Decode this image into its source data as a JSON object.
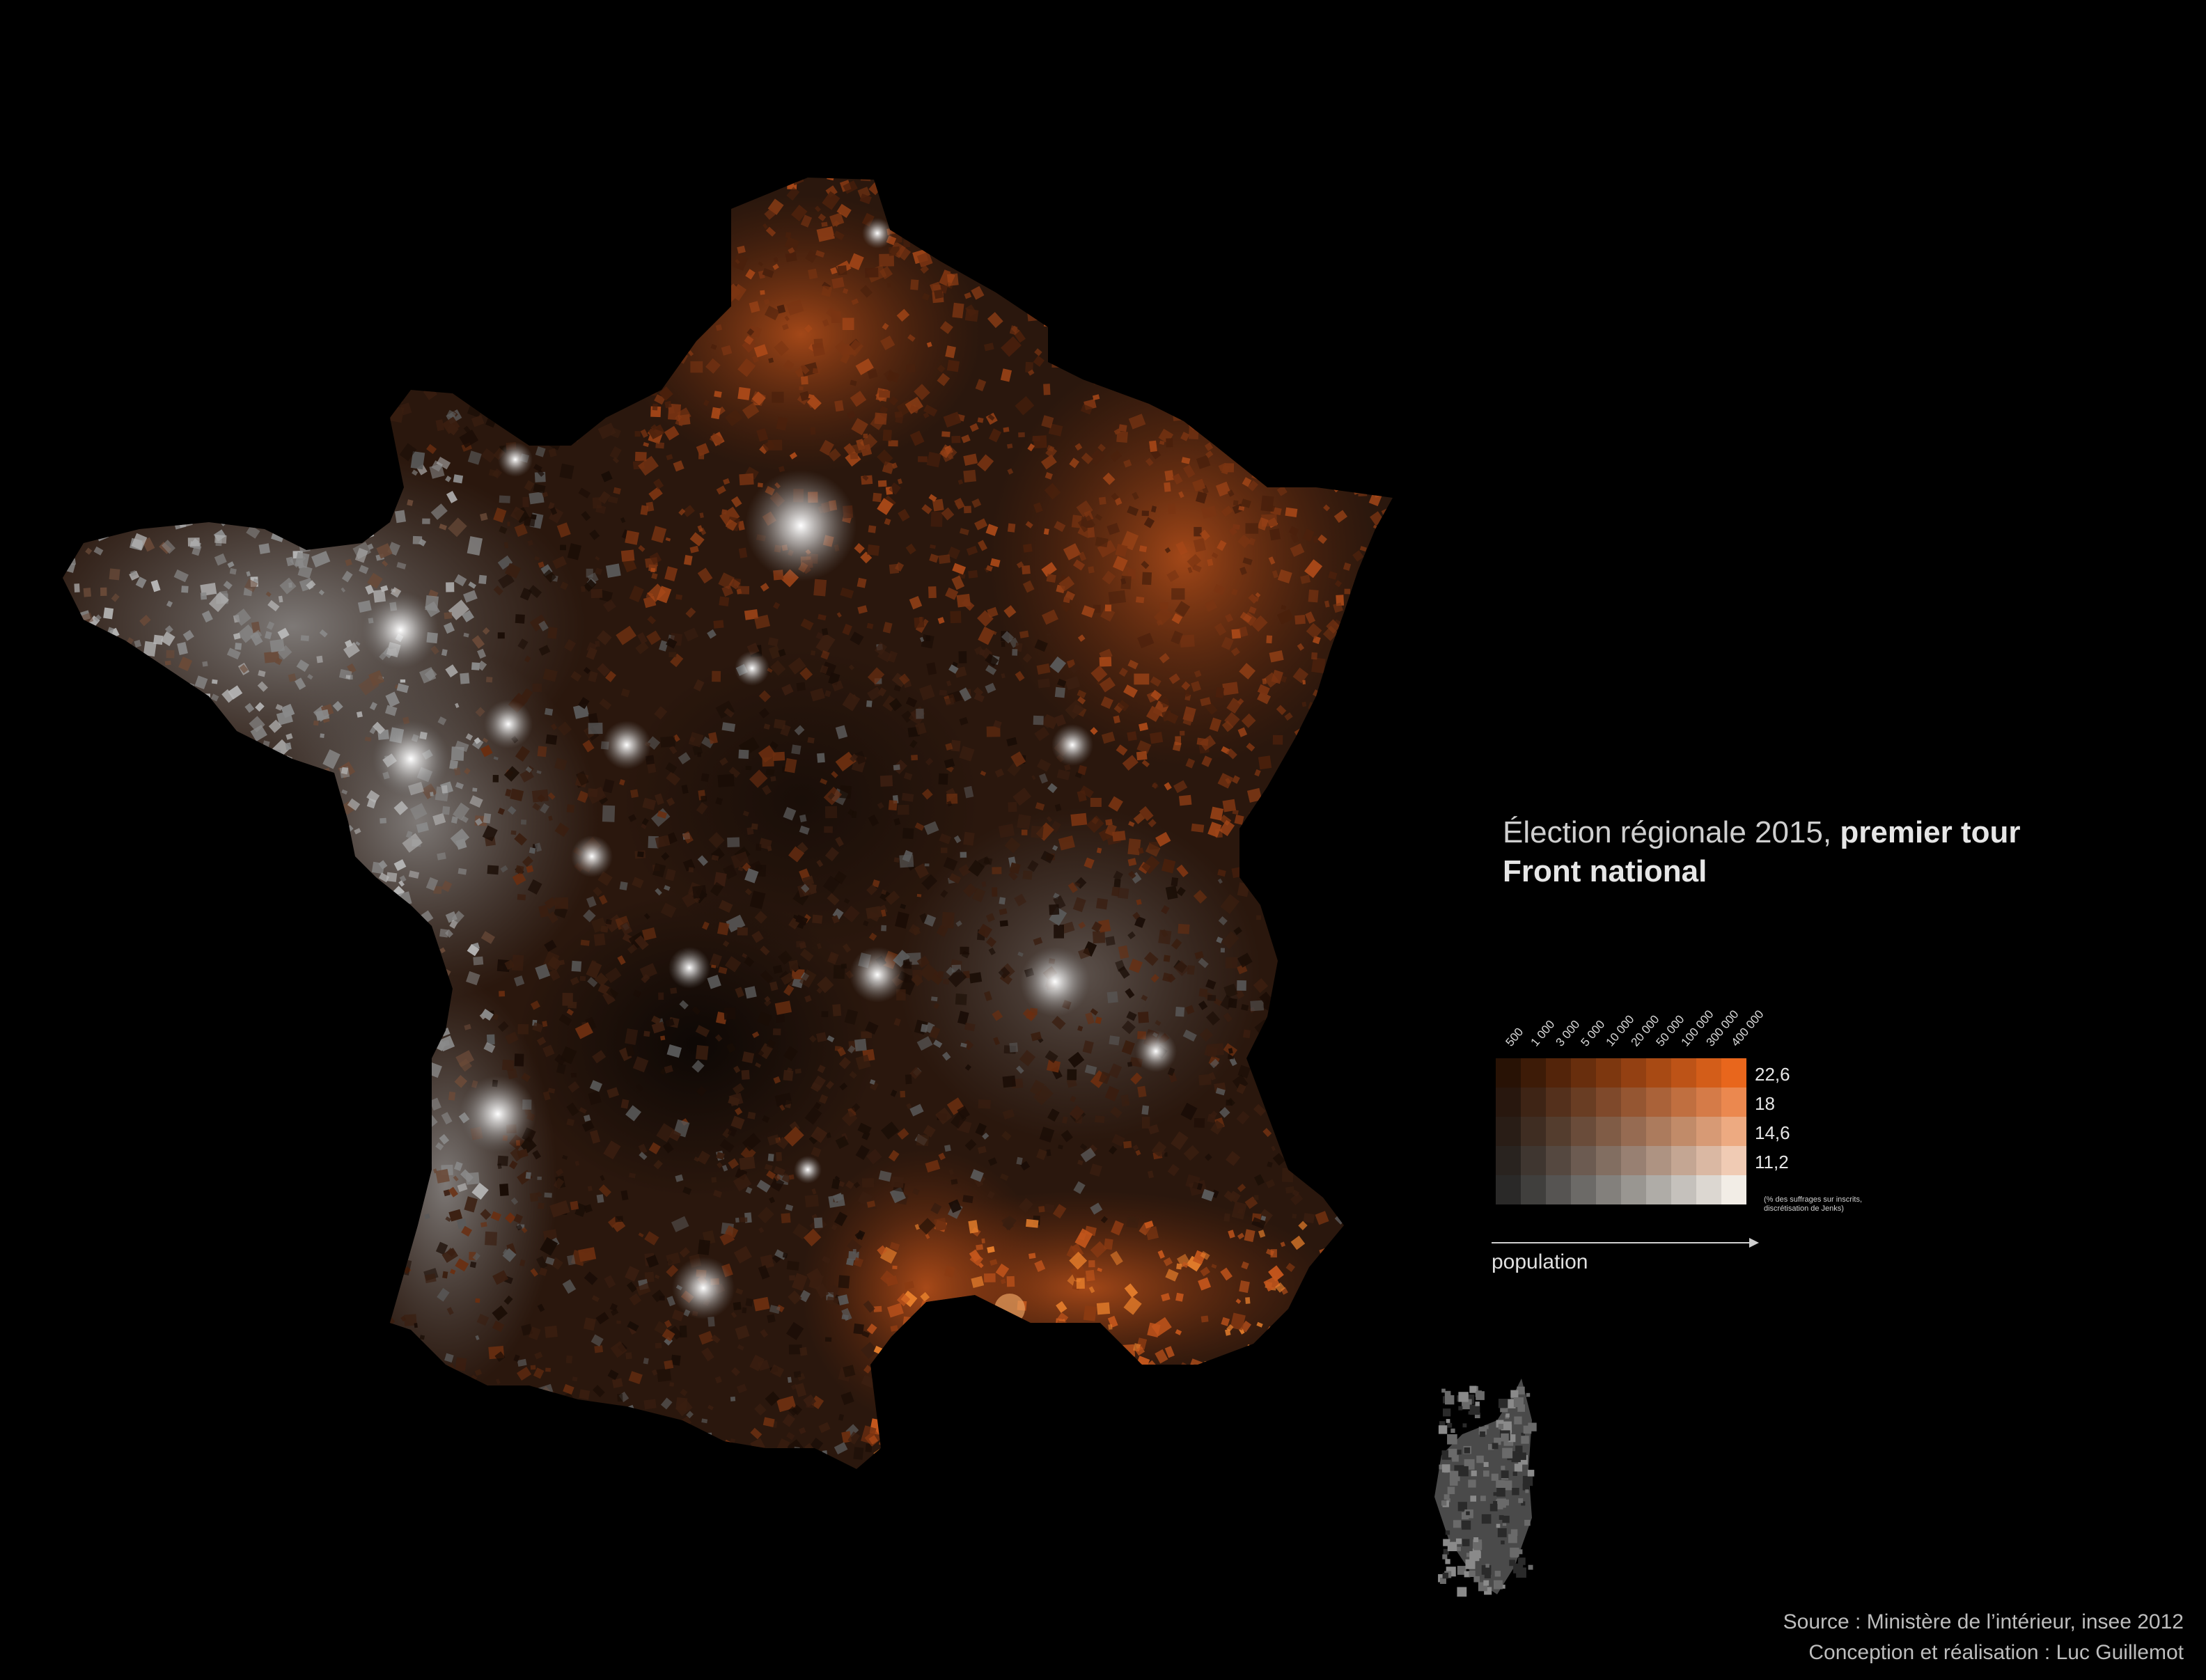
{
  "title": {
    "line1_regular": "Élection régionale 2015, ",
    "line1_bold": "premier tour",
    "line2": "Front national"
  },
  "legend": {
    "population_ticks": [
      "500",
      "1 000",
      "3 000",
      "5 000",
      "10 000",
      "20 000",
      "50 000",
      "100 000",
      "300 000",
      "400 000"
    ],
    "value_breaks": [
      "22,6",
      "18",
      "14,6",
      "11,2"
    ],
    "note_line1": "(% des suffrages sur inscrits,",
    "note_line2": "discrétisation de Jenks)",
    "axis_label": "population",
    "high_color": "#e8661c",
    "low_color": "#f2ede6"
  },
  "credits": {
    "source": "Source : Ministère de l’intérieur, insee 2012",
    "author": "Conception et réalisation : Luc Guillemot"
  },
  "colors": {
    "background": "#000000",
    "fn_strong": "#e8661c",
    "fn_mid": "#8a3a12",
    "fn_low": "#b8b8b8"
  }
}
